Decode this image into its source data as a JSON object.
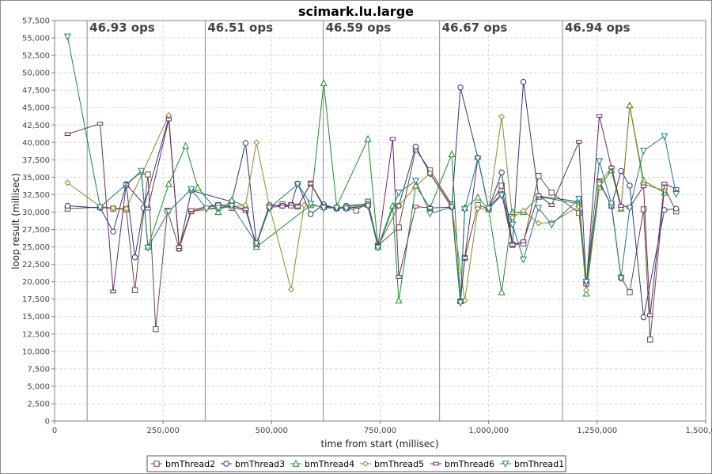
{
  "chart_data": {
    "type": "line",
    "title": "scimark.lu.large",
    "xlabel": "time from start (millisec)",
    "ylabel": "loop result (millisec)",
    "xlim": [
      0,
      1500000
    ],
    "ylim": [
      0,
      57500
    ],
    "x_ticks": [
      0,
      250000,
      500000,
      750000,
      1000000,
      1250000,
      1500000
    ],
    "x_tick_labels": [
      "0",
      "250,000",
      "500,000",
      "750,000",
      "1,000,000",
      "1,250,000",
      "1,500,000"
    ],
    "y_ticks": [
      0,
      2500,
      5000,
      7500,
      10000,
      12500,
      15000,
      17500,
      20000,
      22500,
      25000,
      27500,
      30000,
      32500,
      35000,
      37500,
      40000,
      42500,
      45000,
      47500,
      50000,
      52500,
      55000,
      57500
    ],
    "y_tick_labels": [
      "0",
      "2,500",
      "5,000",
      "7,500",
      "10,000",
      "12,500",
      "15,000",
      "17,500",
      "20,000",
      "22,500",
      "25,000",
      "27,500",
      "30,000",
      "32,500",
      "35,000",
      "37,500",
      "40,000",
      "42,500",
      "45,000",
      "47,500",
      "50,000",
      "52,500",
      "55,000",
      "57,500"
    ],
    "grid": true,
    "legend_position": "bottom",
    "phases": [
      {
        "x": 75000,
        "label": "46.93 ops"
      },
      {
        "x": 347000,
        "label": "46.51 ops"
      },
      {
        "x": 619000,
        "label": "46.59 ops"
      },
      {
        "x": 887000,
        "label": "46.67 ops"
      },
      {
        "x": 1170000,
        "label": "46.94 ops"
      }
    ],
    "series": [
      {
        "name": "bmThread2",
        "color": "#6b4a3a",
        "marker": "square",
        "points": [
          [
            30000,
            30500
          ],
          [
            105000,
            30700
          ],
          [
            135000,
            30500
          ],
          [
            165000,
            30400
          ],
          [
            185000,
            18800
          ],
          [
            215000,
            35400
          ],
          [
            233000,
            13200
          ],
          [
            260000,
            30200
          ],
          [
            287000,
            24800
          ],
          [
            315000,
            30100
          ],
          [
            377000,
            31000
          ],
          [
            408000,
            30600
          ],
          [
            440000,
            30300
          ],
          [
            465000,
            25300
          ],
          [
            495000,
            30800
          ],
          [
            525000,
            31100
          ],
          [
            545000,
            31000
          ],
          [
            560000,
            30800
          ],
          [
            590000,
            34100
          ],
          [
            620000,
            30700
          ],
          [
            650000,
            30600
          ],
          [
            672000,
            30600
          ],
          [
            695000,
            30200
          ],
          [
            722000,
            31500
          ],
          [
            745000,
            25200
          ],
          [
            793000,
            27800
          ],
          [
            832000,
            39000
          ],
          [
            865000,
            36000
          ],
          [
            915000,
            31100
          ],
          [
            935000,
            17200
          ],
          [
            945000,
            23400
          ],
          [
            975000,
            31000
          ],
          [
            1000000,
            30500
          ],
          [
            1030000,
            33800
          ],
          [
            1055000,
            25300
          ],
          [
            1080000,
            25500
          ],
          [
            1115000,
            35200
          ],
          [
            1145000,
            32800
          ],
          [
            1208000,
            29900
          ],
          [
            1225000,
            19800
          ],
          [
            1255000,
            34400
          ],
          [
            1283000,
            30900
          ],
          [
            1305000,
            20600
          ],
          [
            1325000,
            18500
          ],
          [
            1357000,
            30400
          ],
          [
            1372000,
            11700
          ],
          [
            1405000,
            33500
          ],
          [
            1432000,
            30100
          ]
        ]
      },
      {
        "name": "bmThread3",
        "color": "#2a3a78",
        "marker": "circle",
        "points": [
          [
            30000,
            30900
          ],
          [
            105000,
            30600
          ],
          [
            135000,
            27200
          ],
          [
            165000,
            34000
          ],
          [
            185000,
            23500
          ],
          [
            205000,
            30600
          ],
          [
            263000,
            43500
          ],
          [
            287000,
            24700
          ],
          [
            315000,
            33100
          ],
          [
            408000,
            31500
          ],
          [
            440000,
            39900
          ],
          [
            465000,
            25500
          ],
          [
            495000,
            31000
          ],
          [
            525000,
            30900
          ],
          [
            545000,
            31000
          ],
          [
            560000,
            34100
          ],
          [
            590000,
            29700
          ],
          [
            620000,
            31100
          ],
          [
            650000,
            30500
          ],
          [
            672000,
            30900
          ],
          [
            722000,
            31200
          ],
          [
            745000,
            25100
          ],
          [
            793000,
            30900
          ],
          [
            832000,
            39400
          ],
          [
            865000,
            35500
          ],
          [
            915000,
            30700
          ],
          [
            935000,
            47900
          ],
          [
            975000,
            37800
          ],
          [
            1000000,
            30500
          ],
          [
            1030000,
            35700
          ],
          [
            1055000,
            25400
          ],
          [
            1080000,
            48700
          ],
          [
            1115000,
            32300
          ],
          [
            1208000,
            31500
          ],
          [
            1225000,
            19800
          ],
          [
            1255000,
            34300
          ],
          [
            1283000,
            30900
          ],
          [
            1305000,
            35900
          ],
          [
            1325000,
            33800
          ],
          [
            1357000,
            14900
          ],
          [
            1405000,
            30300
          ],
          [
            1432000,
            30500
          ]
        ]
      },
      {
        "name": "bmThread4",
        "color": "#1f8a2c",
        "marker": "triangle",
        "points": [
          [
            165000,
            33900
          ],
          [
            200000,
            35800
          ],
          [
            215000,
            25000
          ],
          [
            263000,
            34000
          ],
          [
            302000,
            39500
          ],
          [
            330000,
            33500
          ],
          [
            377000,
            30000
          ],
          [
            408000,
            31700
          ],
          [
            440000,
            30800
          ],
          [
            465000,
            25000
          ],
          [
            590000,
            31000
          ],
          [
            620000,
            48500
          ],
          [
            650000,
            30800
          ],
          [
            722000,
            40500
          ],
          [
            745000,
            25000
          ],
          [
            779000,
            30900
          ],
          [
            793000,
            17300
          ],
          [
            832000,
            33800
          ],
          [
            865000,
            30600
          ],
          [
            915000,
            38300
          ],
          [
            935000,
            17300
          ],
          [
            945000,
            30600
          ],
          [
            975000,
            32100
          ],
          [
            1000000,
            30400
          ],
          [
            1030000,
            18500
          ],
          [
            1055000,
            30000
          ],
          [
            1080000,
            30000
          ],
          [
            1115000,
            32200
          ],
          [
            1208000,
            31200
          ],
          [
            1225000,
            18300
          ],
          [
            1255000,
            33600
          ],
          [
            1283000,
            36000
          ],
          [
            1305000,
            30500
          ],
          [
            1325000,
            45300
          ],
          [
            1357000,
            34500
          ],
          [
            1405000,
            32800
          ]
        ]
      },
      {
        "name": "bmThread5",
        "color": "#8a8a2a",
        "marker": "diamond",
        "points": [
          [
            30000,
            34200
          ],
          [
            105000,
            30800
          ],
          [
            135000,
            30600
          ],
          [
            165000,
            30500
          ],
          [
            263000,
            43900
          ],
          [
            287000,
            24700
          ],
          [
            315000,
            30100
          ],
          [
            440000,
            31000
          ],
          [
            465000,
            40000
          ],
          [
            495000,
            30800
          ],
          [
            545000,
            18900
          ],
          [
            575000,
            31000
          ],
          [
            620000,
            30800
          ],
          [
            650000,
            30600
          ],
          [
            672000,
            30800
          ],
          [
            722000,
            31000
          ],
          [
            745000,
            25100
          ],
          [
            793000,
            30900
          ],
          [
            832000,
            33700
          ],
          [
            865000,
            35600
          ],
          [
            915000,
            30900
          ],
          [
            945000,
            17300
          ],
          [
            975000,
            30500
          ],
          [
            1000000,
            30400
          ],
          [
            1030000,
            43700
          ],
          [
            1055000,
            29200
          ],
          [
            1080000,
            30200
          ],
          [
            1115000,
            28400
          ],
          [
            1145000,
            28500
          ],
          [
            1208000,
            30800
          ],
          [
            1225000,
            18800
          ],
          [
            1255000,
            34100
          ],
          [
            1283000,
            36400
          ],
          [
            1305000,
            30500
          ],
          [
            1325000,
            45200
          ],
          [
            1357000,
            34000
          ],
          [
            1405000,
            33100
          ]
        ]
      },
      {
        "name": "bmThread6",
        "color": "#6a2a6a",
        "marker": "vline",
        "points": [
          [
            30000,
            41200
          ],
          [
            105000,
            42700
          ],
          [
            135000,
            18600
          ],
          [
            165000,
            34000
          ],
          [
            215000,
            30500
          ],
          [
            263000,
            43300
          ],
          [
            287000,
            25000
          ],
          [
            315000,
            30300
          ],
          [
            377000,
            31100
          ],
          [
            408000,
            30900
          ],
          [
            440000,
            30400
          ],
          [
            465000,
            25300
          ],
          [
            495000,
            30700
          ],
          [
            525000,
            30800
          ],
          [
            545000,
            30800
          ],
          [
            560000,
            30800
          ],
          [
            590000,
            34100
          ],
          [
            620000,
            30900
          ],
          [
            650000,
            30600
          ],
          [
            672000,
            30600
          ],
          [
            722000,
            30900
          ],
          [
            745000,
            25100
          ],
          [
            779000,
            40500
          ],
          [
            793000,
            20700
          ],
          [
            832000,
            30800
          ],
          [
            865000,
            30600
          ],
          [
            915000,
            30700
          ],
          [
            935000,
            17200
          ],
          [
            945000,
            23400
          ],
          [
            975000,
            37800
          ],
          [
            1000000,
            30500
          ],
          [
            1030000,
            32700
          ],
          [
            1055000,
            25300
          ],
          [
            1080000,
            25800
          ],
          [
            1115000,
            32400
          ],
          [
            1145000,
            31000
          ],
          [
            1208000,
            40100
          ],
          [
            1225000,
            19600
          ],
          [
            1255000,
            43800
          ],
          [
            1283000,
            36400
          ],
          [
            1305000,
            30900
          ],
          [
            1325000,
            30700
          ],
          [
            1357000,
            33700
          ],
          [
            1372000,
            15200
          ],
          [
            1405000,
            34100
          ],
          [
            1432000,
            33300
          ]
        ]
      },
      {
        "name": "bmThread1",
        "color": "#1f7a7a",
        "marker": "triangle-down",
        "points": [
          [
            30000,
            55200
          ],
          [
            105000,
            30700
          ],
          [
            200000,
            35900
          ],
          [
            215000,
            24900
          ],
          [
            263000,
            30100
          ],
          [
            315000,
            33300
          ],
          [
            350000,
            30500
          ],
          [
            377000,
            30600
          ],
          [
            408000,
            30900
          ],
          [
            465000,
            25500
          ],
          [
            495000,
            30600
          ],
          [
            560000,
            34000
          ],
          [
            590000,
            31200
          ],
          [
            620000,
            30600
          ],
          [
            650000,
            30600
          ],
          [
            672000,
            30500
          ],
          [
            722000,
            30900
          ],
          [
            745000,
            24900
          ],
          [
            793000,
            32800
          ],
          [
            832000,
            34500
          ],
          [
            865000,
            29800
          ],
          [
            915000,
            30700
          ],
          [
            935000,
            17000
          ],
          [
            945000,
            30400
          ],
          [
            975000,
            37700
          ],
          [
            1000000,
            30500
          ],
          [
            1030000,
            32400
          ],
          [
            1055000,
            28200
          ],
          [
            1080000,
            23200
          ],
          [
            1115000,
            30600
          ],
          [
            1145000,
            28200
          ],
          [
            1208000,
            31900
          ],
          [
            1225000,
            20000
          ],
          [
            1255000,
            37300
          ],
          [
            1283000,
            31200
          ],
          [
            1305000,
            20500
          ],
          [
            1325000,
            30600
          ],
          [
            1357000,
            38800
          ],
          [
            1405000,
            40900
          ],
          [
            1432000,
            32600
          ]
        ]
      }
    ]
  }
}
